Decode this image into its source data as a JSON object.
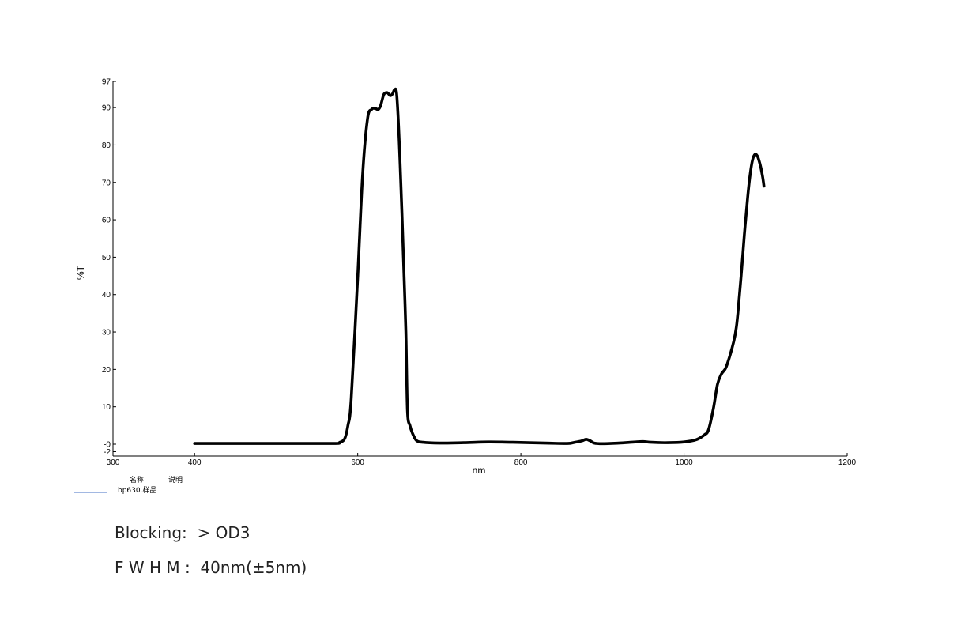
{
  "chart_data": {
    "type": "line",
    "title": "",
    "xlabel": "nm",
    "ylabel": "%T",
    "xlim": [
      300,
      1200
    ],
    "ylim": [
      -2,
      97
    ],
    "x_ticks": [
      "300",
      "400",
      "600",
      "800",
      "1000",
      "1200"
    ],
    "y_ticks": [
      "97",
      "90",
      "80",
      "70",
      "60",
      "50",
      "40",
      "30",
      "20",
      "10",
      "-0",
      "-2"
    ],
    "grid": false,
    "legend": {
      "placement": "bottom-left",
      "header_name": "名称",
      "header_desc": "说明",
      "entries": [
        {
          "label": "bp630.样品",
          "color": "#4472c4"
        }
      ]
    },
    "series": [
      {
        "name": "bp630.样品",
        "color": "#000000",
        "points": [
          [
            400,
            0.2
          ],
          [
            500,
            0.2
          ],
          [
            570,
            0.2
          ],
          [
            578,
            0.5
          ],
          [
            584,
            1.5
          ],
          [
            588,
            5
          ],
          [
            592,
            12
          ],
          [
            600,
            45
          ],
          [
            606,
            72
          ],
          [
            612,
            87
          ],
          [
            617,
            89.5
          ],
          [
            621,
            89.8
          ],
          [
            625,
            89.5
          ],
          [
            628,
            90.5
          ],
          [
            632,
            93.5
          ],
          [
            636,
            94
          ],
          [
            640,
            93.2
          ],
          [
            643,
            93.8
          ],
          [
            645,
            94.6
          ],
          [
            648,
            93
          ],
          [
            652,
            75
          ],
          [
            656,
            50
          ],
          [
            659,
            30
          ],
          [
            661,
            9
          ],
          [
            664,
            5
          ],
          [
            667,
            3
          ],
          [
            672,
            1
          ],
          [
            680,
            0.5
          ],
          [
            700,
            0.3
          ],
          [
            730,
            0.4
          ],
          [
            760,
            0.6
          ],
          [
            790,
            0.5
          ],
          [
            830,
            0.3
          ],
          [
            857,
            0.2
          ],
          [
            866,
            0.5
          ],
          [
            875,
            0.9
          ],
          [
            880,
            1.3
          ],
          [
            885,
            0.9
          ],
          [
            890,
            0.3
          ],
          [
            900,
            0.15
          ],
          [
            920,
            0.3
          ],
          [
            940,
            0.6
          ],
          [
            950,
            0.7
          ],
          [
            960,
            0.5
          ],
          [
            980,
            0.4
          ],
          [
            1000,
            0.6
          ],
          [
            1015,
            1.2
          ],
          [
            1025,
            2.5
          ],
          [
            1030,
            3.8
          ],
          [
            1036,
            9.5
          ],
          [
            1041,
            16
          ],
          [
            1046,
            18.8
          ],
          [
            1051,
            20.3
          ],
          [
            1056,
            23.5
          ],
          [
            1061,
            27.5
          ],
          [
            1064,
            31
          ],
          [
            1066,
            35
          ],
          [
            1070,
            45
          ],
          [
            1074,
            56
          ],
          [
            1078,
            66
          ],
          [
            1081,
            72
          ],
          [
            1084,
            76
          ],
          [
            1087,
            77.5
          ],
          [
            1090,
            77
          ],
          [
            1093,
            75
          ],
          [
            1096,
            72
          ],
          [
            1098,
            69
          ]
        ]
      }
    ]
  },
  "specs": {
    "blocking": "Blocking:  > OD3",
    "fwhm": "F W H M :  40nm(±5nm)"
  }
}
